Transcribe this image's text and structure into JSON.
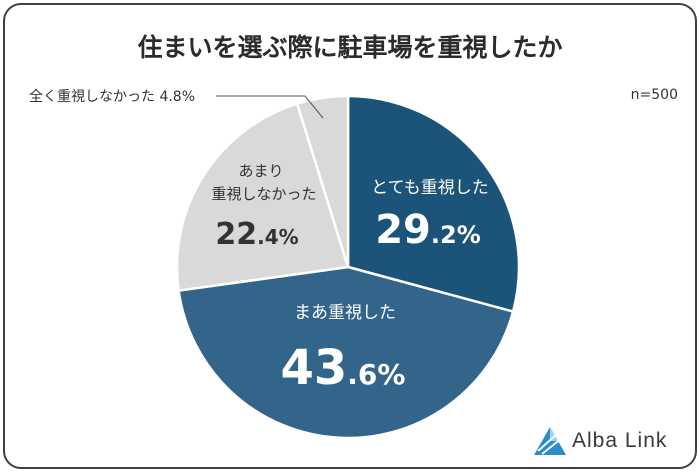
{
  "page": {
    "title": "住まいを選ぶ際に駐車場を重視したか",
    "sample_size": "n=500",
    "brand": "Alba Link"
  },
  "colors": {
    "very_important": "#1c5479",
    "somewhat_important": "#33658b",
    "not_very": "#d9d9d9",
    "not_at_all": "#d9d9d9",
    "slice_border": "#ffffff",
    "text_dark": "#333333",
    "logo_blue": "#2a8ccf"
  },
  "chart_data": {
    "type": "pie",
    "title": "住まいを選ぶ際に駐車場を重視したか",
    "start_angle_deg": 0,
    "direction": "clockwise",
    "slices": [
      {
        "label": "とても重視した",
        "value": 29.2,
        "display": "29.2%"
      },
      {
        "label": "まあ重視した",
        "value": 43.6,
        "display": "43.6%"
      },
      {
        "label": "あまり重視しなかった",
        "label_lines": [
          "あまり",
          "重視しなかった"
        ],
        "value": 22.4,
        "display": "22.4%"
      },
      {
        "label": "全く重視しなかった",
        "value": 4.8,
        "display": "4.8%"
      }
    ]
  }
}
